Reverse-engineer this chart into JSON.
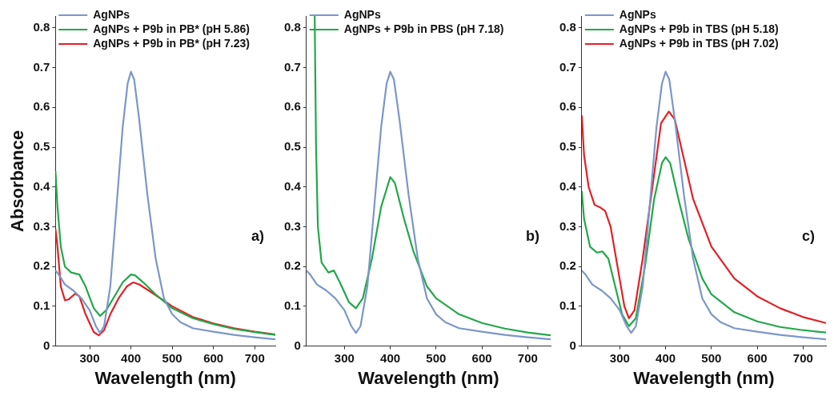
{
  "chart_data": [
    {
      "type": "line",
      "ylabel": "Absorbance",
      "xlabel": "Wavelength (nm)",
      "xlim": [
        217,
        750
      ],
      "xticks": [
        300,
        400,
        500,
        600,
        700
      ],
      "ylim": [
        0,
        0.83
      ],
      "yticks": [
        0,
        0.1,
        0.2,
        0.3,
        0.4,
        0.5,
        0.6,
        0.7,
        0.8
      ],
      "grid": false,
      "legend": "top left",
      "marker": "none",
      "line_style": "solid",
      "annotations": [
        "a)"
      ],
      "series": [
        {
          "name": "AgNPs",
          "color": "#7b97c9",
          "x": [
            217,
            225,
            240,
            260,
            280,
            300,
            315,
            325,
            335,
            350,
            365,
            380,
            392,
            400,
            408,
            420,
            440,
            460,
            480,
            500,
            520,
            550,
            600,
            650,
            700,
            750
          ],
          "values": [
            0.19,
            0.18,
            0.155,
            0.14,
            0.12,
            0.09,
            0.05,
            0.033,
            0.05,
            0.15,
            0.35,
            0.55,
            0.66,
            0.69,
            0.67,
            0.57,
            0.38,
            0.22,
            0.12,
            0.08,
            0.06,
            0.045,
            0.036,
            0.028,
            0.022,
            0.017
          ]
        },
        {
          "name": "AgNPs + P9b in PB* (pH 5.86)",
          "color": "#22a84a",
          "x": [
            217,
            222,
            230,
            240,
            255,
            275,
            290,
            310,
            325,
            340,
            360,
            380,
            400,
            410,
            430,
            460,
            500,
            550,
            600,
            650,
            700,
            750
          ],
          "values": [
            0.44,
            0.35,
            0.25,
            0.2,
            0.185,
            0.18,
            0.15,
            0.095,
            0.076,
            0.09,
            0.125,
            0.16,
            0.18,
            0.178,
            0.16,
            0.13,
            0.095,
            0.07,
            0.055,
            0.043,
            0.035,
            0.028
          ]
        },
        {
          "name": "AgNPs + P9b in PB* (pH 7.23)",
          "color": "#e32026",
          "x": [
            217,
            222,
            230,
            240,
            250,
            265,
            275,
            290,
            310,
            322,
            335,
            350,
            370,
            390,
            405,
            420,
            450,
            500,
            550,
            600,
            650,
            700,
            750
          ],
          "values": [
            0.295,
            0.25,
            0.15,
            0.115,
            0.118,
            0.132,
            0.125,
            0.08,
            0.035,
            0.027,
            0.04,
            0.08,
            0.12,
            0.15,
            0.16,
            0.155,
            0.135,
            0.1,
            0.073,
            0.057,
            0.045,
            0.036,
            0.029
          ]
        }
      ]
    },
    {
      "type": "line",
      "xlabel": "Wavelength (nm)",
      "xlim": [
        217,
        750
      ],
      "xticks": [
        300,
        400,
        500,
        600,
        700
      ],
      "ylim": [
        0,
        0.83
      ],
      "yticks": [
        0,
        0.1,
        0.2,
        0.3,
        0.4,
        0.5,
        0.6,
        0.7,
        0.8
      ],
      "grid": false,
      "legend": "top left",
      "marker": "none",
      "line_style": "solid",
      "annotations": [
        "b)"
      ],
      "series": [
        {
          "name": "AgNPs",
          "color": "#7b97c9",
          "x": [
            217,
            225,
            240,
            260,
            280,
            300,
            315,
            325,
            335,
            350,
            365,
            380,
            392,
            400,
            408,
            420,
            440,
            460,
            480,
            500,
            520,
            550,
            600,
            650,
            700,
            750
          ],
          "values": [
            0.19,
            0.18,
            0.155,
            0.14,
            0.12,
            0.09,
            0.05,
            0.033,
            0.05,
            0.15,
            0.35,
            0.55,
            0.66,
            0.69,
            0.67,
            0.57,
            0.38,
            0.22,
            0.12,
            0.08,
            0.06,
            0.045,
            0.036,
            0.028,
            0.022,
            0.017
          ]
        },
        {
          "name": "AgNPs + P9b in PBS (pH 7.18)",
          "color": "#22a84a",
          "x": [
            235,
            238,
            242,
            250,
            265,
            277,
            290,
            310,
            325,
            340,
            360,
            380,
            400,
            410,
            430,
            450,
            480,
            500,
            550,
            600,
            650,
            700,
            750
          ],
          "values": [
            0.83,
            0.5,
            0.3,
            0.21,
            0.185,
            0.19,
            0.16,
            0.11,
            0.095,
            0.12,
            0.22,
            0.35,
            0.425,
            0.41,
            0.32,
            0.24,
            0.15,
            0.12,
            0.08,
            0.058,
            0.044,
            0.034,
            0.027
          ]
        }
      ]
    },
    {
      "type": "line",
      "xlabel": "Wavelength (nm)",
      "xlim": [
        217,
        750
      ],
      "xticks": [
        300,
        400,
        500,
        600,
        700
      ],
      "ylim": [
        0,
        0.83
      ],
      "yticks": [
        0,
        0.1,
        0.2,
        0.3,
        0.4,
        0.5,
        0.6,
        0.7,
        0.8
      ],
      "grid": false,
      "legend": "top left",
      "marker": "none",
      "line_style": "solid",
      "annotations": [
        "c)"
      ],
      "series": [
        {
          "name": "AgNPs",
          "color": "#7b97c9",
          "x": [
            217,
            225,
            240,
            260,
            280,
            300,
            315,
            325,
            335,
            350,
            365,
            380,
            392,
            400,
            408,
            420,
            440,
            460,
            480,
            500,
            520,
            550,
            600,
            650,
            700,
            750
          ],
          "values": [
            0.19,
            0.18,
            0.155,
            0.14,
            0.12,
            0.09,
            0.05,
            0.033,
            0.05,
            0.15,
            0.35,
            0.55,
            0.66,
            0.69,
            0.67,
            0.57,
            0.38,
            0.22,
            0.12,
            0.08,
            0.06,
            0.045,
            0.036,
            0.028,
            0.022,
            0.017
          ]
        },
        {
          "name": "AgNPs + P9b in TBS (pH 5.18)",
          "color": "#22a84a",
          "x": [
            217,
            222,
            235,
            250,
            262,
            275,
            290,
            305,
            320,
            335,
            355,
            375,
            392,
            400,
            410,
            430,
            450,
            480,
            500,
            550,
            600,
            650,
            700,
            750
          ],
          "values": [
            0.39,
            0.32,
            0.25,
            0.235,
            0.238,
            0.22,
            0.15,
            0.08,
            0.05,
            0.07,
            0.2,
            0.37,
            0.46,
            0.475,
            0.46,
            0.36,
            0.27,
            0.17,
            0.13,
            0.085,
            0.062,
            0.048,
            0.04,
            0.034
          ]
        },
        {
          "name": "AgNPs + P9b in TBS (pH 7.02)",
          "color": "#e32026",
          "x": [
            217,
            222,
            232,
            245,
            258,
            268,
            280,
            295,
            310,
            320,
            332,
            350,
            390,
            407,
            420,
            440,
            460,
            500,
            550,
            600,
            650,
            700,
            750
          ],
          "values": [
            0.58,
            0.48,
            0.4,
            0.355,
            0.348,
            0.34,
            0.3,
            0.2,
            0.1,
            0.07,
            0.09,
            0.22,
            0.56,
            0.59,
            0.57,
            0.47,
            0.37,
            0.25,
            0.17,
            0.125,
            0.095,
            0.073,
            0.058
          ]
        }
      ]
    }
  ]
}
